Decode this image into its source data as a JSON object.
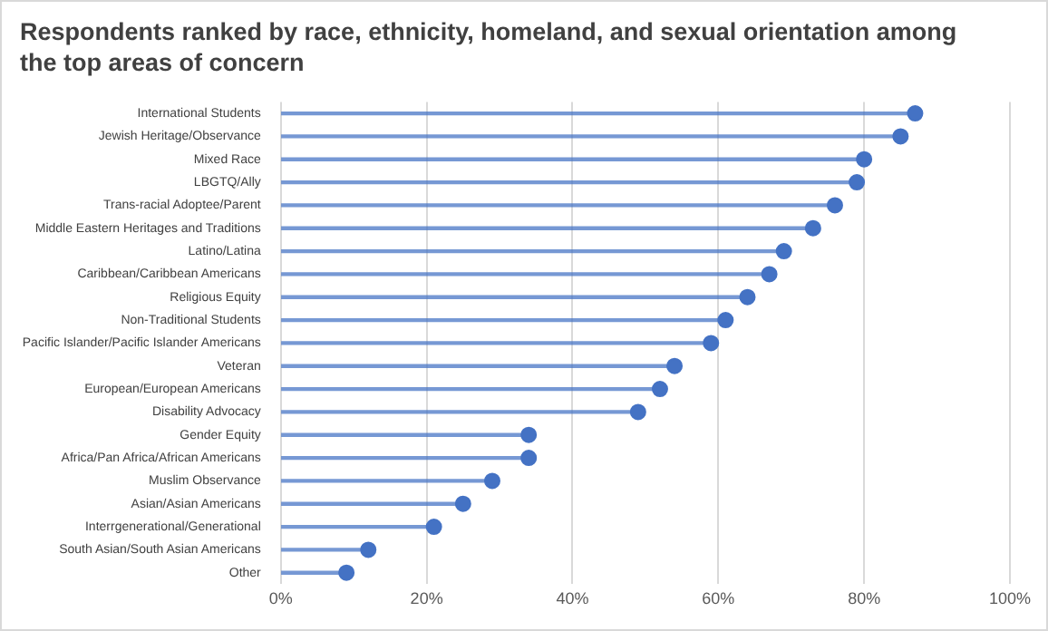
{
  "chart_data": {
    "type": "lollipop",
    "title": "Respondents ranked by race, ethnicity, homeland, and sexual orientation among the top areas of concern",
    "orientation": "horizontal",
    "categories": [
      "International Students",
      "Jewish Heritage/Observance",
      "Mixed Race",
      "LBGTQ/Ally",
      "Trans-racial Adoptee/Parent",
      "Middle Eastern Heritages and Traditions",
      "Latino/Latina",
      "Caribbean/Caribbean Americans",
      "Religious Equity",
      "Non-Traditional Students",
      "Pacific Islander/Pacific Islander Americans",
      "Veteran",
      "European/European Americans",
      "Disability Advocacy",
      "Gender Equity",
      "Africa/Pan Africa/African Americans",
      "Muslim Observance",
      "Asian/Asian Americans",
      "Interrgenerational/Generational",
      "South Asian/South Asian Americans",
      "Other"
    ],
    "values": [
      87,
      85,
      80,
      79,
      76,
      73,
      69,
      67,
      64,
      61,
      59,
      54,
      52,
      49,
      34,
      34,
      29,
      25,
      21,
      12,
      9
    ],
    "color": "#4472c4",
    "xlim": [
      0,
      100
    ],
    "xticks": [
      {
        "value": 0,
        "label": "0%"
      },
      {
        "value": 20,
        "label": "20%"
      },
      {
        "value": 40,
        "label": "40%"
      },
      {
        "value": 60,
        "label": "60%"
      },
      {
        "value": 80,
        "label": "80%"
      },
      {
        "value": 100,
        "label": "100%"
      }
    ],
    "grid": "x",
    "legend": false,
    "marker": "circle"
  }
}
